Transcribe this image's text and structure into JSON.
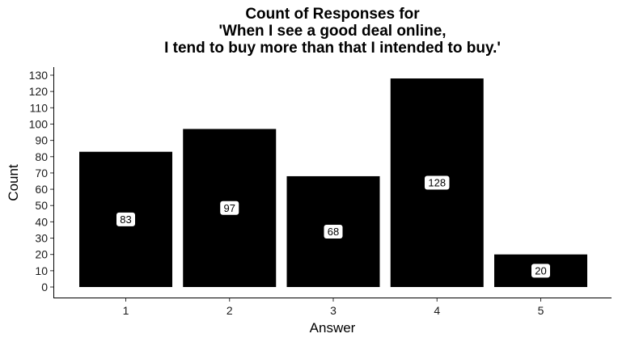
{
  "chart_data": {
    "type": "bar",
    "title_lines": [
      "Count of Responses for",
      "'When I see a good deal online,",
      "I tend to buy more than that I intended to buy.'"
    ],
    "xlabel": "Answer",
    "ylabel": "Count",
    "categories": [
      "1",
      "2",
      "3",
      "4",
      "5"
    ],
    "values": [
      83,
      97,
      68,
      128,
      20
    ],
    "data_labels": [
      "83",
      "97",
      "68",
      "128",
      "20"
    ],
    "ylim": [
      0,
      130
    ],
    "yticks": [
      0,
      10,
      20,
      30,
      40,
      50,
      60,
      70,
      80,
      90,
      100,
      110,
      120,
      130
    ],
    "grid": false,
    "legend": "none",
    "bar_color": "#000000",
    "label_fill": "#ffffff"
  }
}
